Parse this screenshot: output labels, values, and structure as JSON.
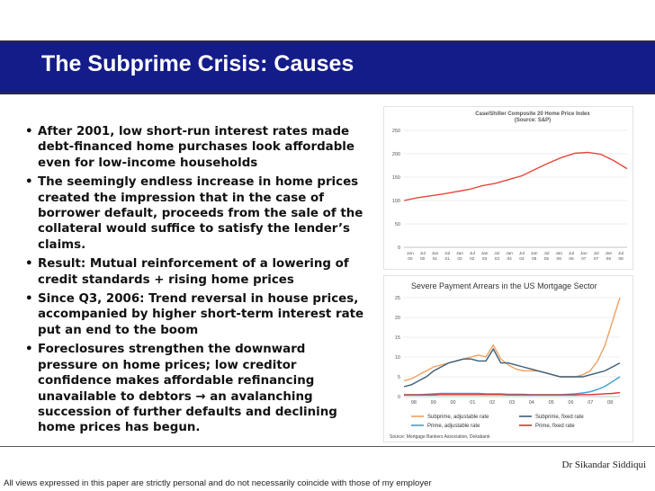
{
  "slide": {
    "title": "The Subprime Crisis: Causes",
    "bullet_marker": "•",
    "bullets": [
      "After 2001, low short-run interest rates made debt-financed home purchases look affordable even for low-income households",
      "The seemingly endless increase in home prices created the impression that in the case of borrower default, proceeds from the sale of the collateral would suffice to satisfy the lender’s claims.",
      "Result: Mutual reinforcement of a lowering of credit standards + rising home prices",
      "Since Q3, 2006: Trend reversal in house prices, accompanied by higher short-term interest rate put an end to the boom",
      "Foreclosures strengthen the downward pressure on home prices; low creditor confidence makes affordable refinancing unavailable to debtors  →  an avalanching succession of further defaults and declining home prices has begun."
    ],
    "author": "Dr Sikandar Siddiqui",
    "disclaimer": "All views expressed in this paper are strictly personal and do not necessarily coincide with those of my employer"
  },
  "chart_data": [
    {
      "type": "line",
      "title": "Case/Shiller Composite 20 Home Price Index",
      "subtitle": "(Source: S&P)",
      "ylim": [
        0,
        250
      ],
      "yticks": [
        0,
        50,
        100,
        150,
        200,
        250
      ],
      "xticks": [
        [
          "Jan",
          "00"
        ],
        [
          "Jul",
          "00"
        ],
        [
          "Jan",
          "01"
        ],
        [
          "Jul",
          "01"
        ],
        [
          "Jan",
          "02"
        ],
        [
          "Jul",
          "02"
        ],
        [
          "Jan",
          "03"
        ],
        [
          "Jul",
          "03"
        ],
        [
          "Jan",
          "04"
        ],
        [
          "Jul",
          "04"
        ],
        [
          "Jan",
          "05"
        ],
        [
          "Jul",
          "05"
        ],
        [
          "Jan",
          "06"
        ],
        [
          "Jul",
          "06"
        ],
        [
          "Jan",
          "07"
        ],
        [
          "Jul",
          "07"
        ],
        [
          "Jan",
          "08"
        ],
        [
          "Jul",
          "08"
        ]
      ],
      "series": [
        {
          "name": "Case/Shiller Composite 20",
          "color": "#e8463a",
          "values": [
            100,
            106,
            110,
            114,
            119,
            124,
            132,
            137,
            145,
            153,
            167,
            180,
            192,
            201,
            203,
            199,
            185,
            168
          ]
        }
      ]
    },
    {
      "type": "line",
      "title": "Severe Payment Arrears in the US Mortgage Sector",
      "ylim": [
        0,
        25
      ],
      "yticks": [
        0,
        5,
        10,
        15,
        20,
        25
      ],
      "xticks": [
        "98",
        "99",
        "00",
        "01",
        "02",
        "03",
        "04",
        "05",
        "06",
        "07",
        "08"
      ],
      "source": "Source: Mortgage Bankers Association, Dekabank",
      "series": [
        {
          "name": "Subprime, adjustable rate",
          "color": "#f0a060",
          "values": [
            4,
            4.5,
            5.5,
            6.5,
            7.5,
            8,
            8.5,
            9,
            9.5,
            10,
            10.5,
            10,
            13,
            9.5,
            8,
            7,
            6.5,
            6.5,
            6.5,
            6,
            5.5,
            5,
            5,
            5,
            5.5,
            6.5,
            9,
            13,
            19,
            25
          ]
        },
        {
          "name": "Subprime, fixed rate",
          "color": "#3a5f7a",
          "values": [
            2.5,
            3,
            4,
            5,
            6.5,
            7.5,
            8.5,
            9,
            9.5,
            9.5,
            9,
            9,
            12,
            8.5,
            8.5,
            8,
            7.5,
            7,
            6.5,
            6,
            5.5,
            5,
            5,
            5,
            5,
            5.5,
            6,
            6.5,
            7.5,
            8.5
          ]
        },
        {
          "name": "Prime, adjustable rate",
          "color": "#3aa0d0",
          "values": [
            0.5,
            0.5,
            0.5,
            0.6,
            0.7,
            0.8,
            0.8,
            0.8,
            0.8,
            0.8,
            0.8,
            0.7,
            0.7,
            0.7,
            0.6,
            0.6,
            0.6,
            0.5,
            0.5,
            0.5,
            0.5,
            0.5,
            0.6,
            0.7,
            0.9,
            1.2,
            1.8,
            2.6,
            3.8,
            5
          ]
        },
        {
          "name": "Prime, fixed rate",
          "color": "#e03030",
          "values": [
            0.4,
            0.4,
            0.4,
            0.4,
            0.4,
            0.5,
            0.5,
            0.5,
            0.5,
            0.5,
            0.5,
            0.5,
            0.5,
            0.5,
            0.4,
            0.4,
            0.4,
            0.4,
            0.4,
            0.4,
            0.4,
            0.4,
            0.4,
            0.4,
            0.5,
            0.5,
            0.6,
            0.7,
            0.8,
            1
          ]
        }
      ]
    }
  ]
}
